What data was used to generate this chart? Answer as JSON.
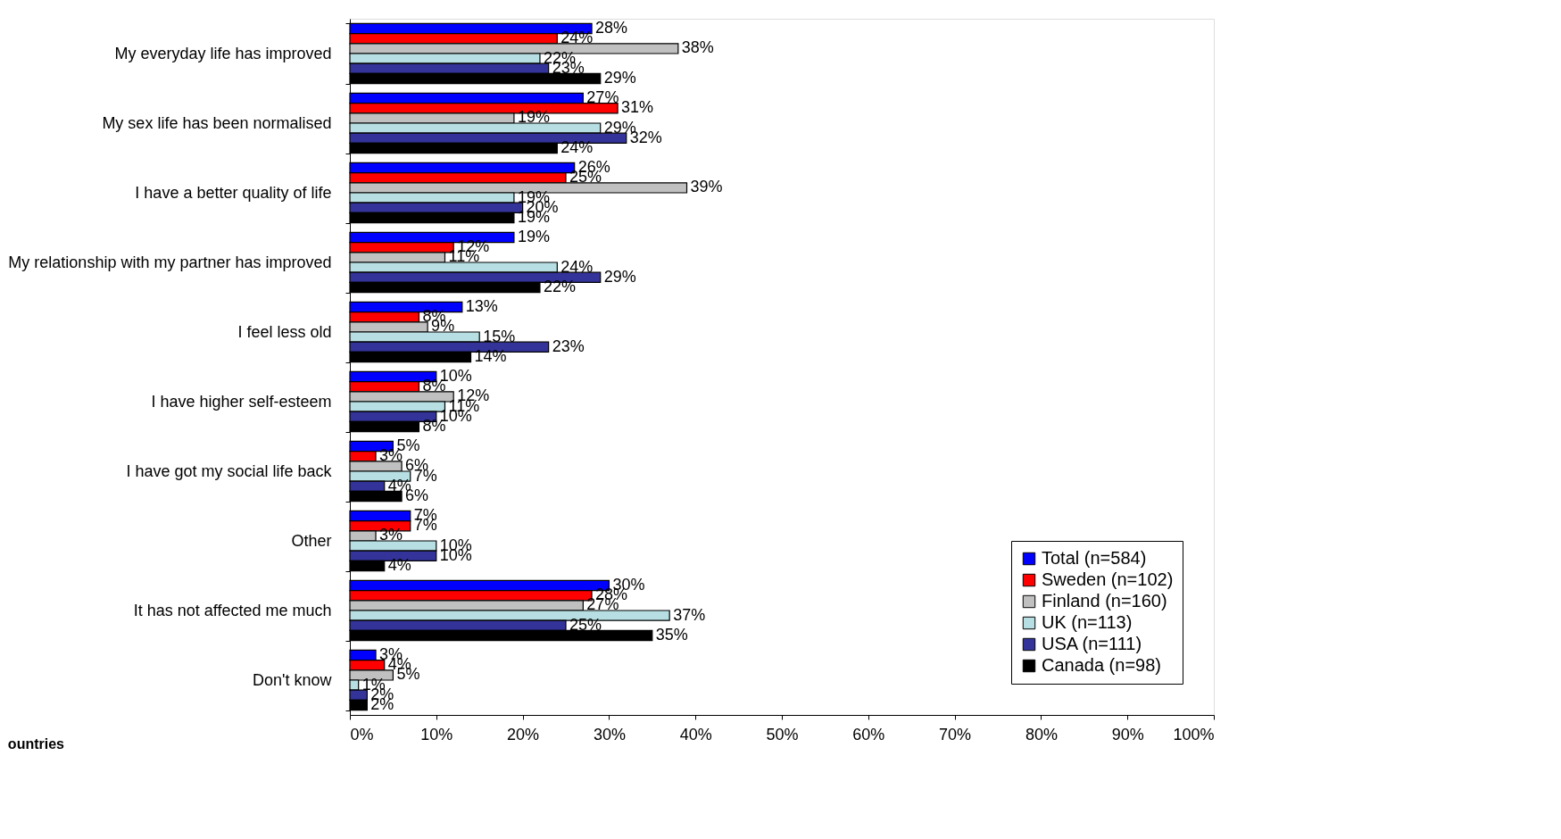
{
  "chart_data": {
    "type": "bar",
    "orientation": "horizontal",
    "categories": [
      "My everyday life has improved",
      "My sex life has been normalised",
      "I have a better quality of life",
      "My relationship with my partner has improved",
      "I feel less old",
      "I have higher self-esteem",
      "I have got my social life back",
      "Other",
      "It has not affected me much",
      "Don't know"
    ],
    "series": [
      {
        "name": "Total (n=584)",
        "color": "#0000ff",
        "values": [
          28,
          27,
          26,
          19,
          13,
          10,
          5,
          7,
          30,
          3
        ],
        "value_labels": [
          "28%",
          "27%",
          "26%",
          "19%",
          "13%",
          "10%",
          "5%",
          "7%",
          "30%",
          "3%"
        ]
      },
      {
        "name": "Sweden (n=102)",
        "color": "#ff0000",
        "values": [
          24,
          31,
          25,
          12,
          8,
          8,
          3,
          7,
          28,
          4
        ],
        "value_labels": [
          "24%",
          "31%",
          "25%",
          "12%",
          "8%",
          "8%",
          "3%",
          "7%",
          "28%",
          "4%"
        ]
      },
      {
        "name": "Finland (n=160)",
        "color": "#c0c0c0",
        "values": [
          38,
          19,
          39,
          11,
          9,
          12,
          6,
          3,
          27,
          5
        ],
        "value_labels": [
          "38%",
          "19%",
          "39%",
          "11%",
          "9%",
          "12%",
          "6%",
          "3%",
          "27%",
          "5%"
        ]
      },
      {
        "name": "UK (n=113)",
        "color": "#b7dfe3",
        "values": [
          22,
          29,
          19,
          24,
          15,
          11,
          7,
          10,
          37,
          1
        ],
        "value_labels": [
          "22%",
          "29%",
          "19%",
          "24%",
          "15%",
          "11%",
          "7%",
          "10%",
          "37%",
          "1%"
        ]
      },
      {
        "name": "USA (n=111)",
        "color": "#333399",
        "values": [
          23,
          32,
          20,
          29,
          23,
          10,
          4,
          10,
          25,
          2
        ],
        "value_labels": [
          "23%",
          "32%",
          "20%",
          "29%",
          "23%",
          "10%",
          "4%",
          "10%",
          "25%",
          "2%"
        ]
      },
      {
        "name": "Canada (n=98)",
        "color": "#000000",
        "values": [
          29,
          24,
          19,
          22,
          14,
          8,
          6,
          4,
          35,
          2
        ],
        "value_labels": [
          "29%",
          "24%",
          "19%",
          "22%",
          "14%",
          "8%",
          "6%",
          "4%",
          "35%",
          "2%"
        ]
      }
    ],
    "xlim": [
      0,
      100
    ],
    "xticks": [
      {
        "value": 0,
        "label": "0%"
      },
      {
        "value": 10,
        "label": "10%"
      },
      {
        "value": 20,
        "label": "20%"
      },
      {
        "value": 30,
        "label": "30%"
      },
      {
        "value": 40,
        "label": "40%"
      },
      {
        "value": 50,
        "label": "50%"
      },
      {
        "value": 60,
        "label": "60%"
      },
      {
        "value": 70,
        "label": "70%"
      },
      {
        "value": 80,
        "label": "80%"
      },
      {
        "value": 90,
        "label": "90%"
      },
      {
        "value": 100,
        "label": "100%"
      }
    ],
    "grid": false,
    "legend": "bottom right",
    "annotations": [
      "ountries"
    ]
  }
}
